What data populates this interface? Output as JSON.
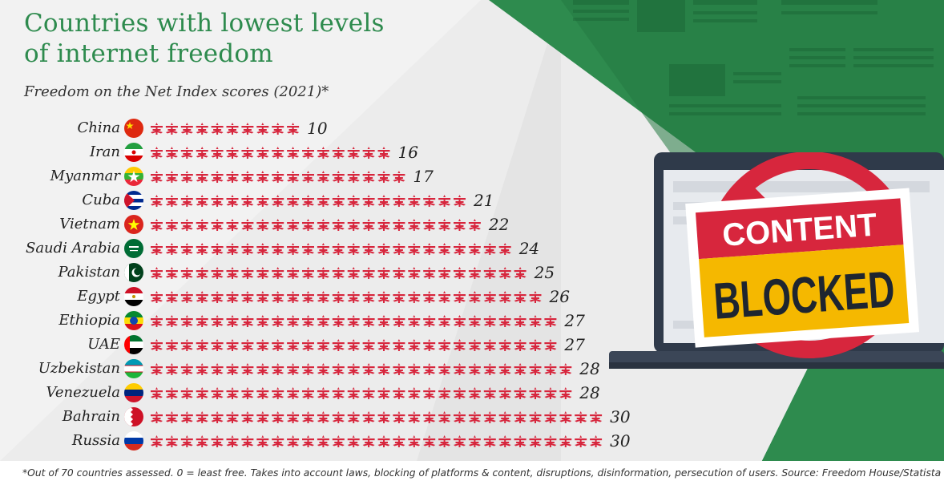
{
  "header": {
    "title_line1": "Countries with lowest levels",
    "title_line2": "of internet freedom",
    "subtitle": "Freedom on the Net Index scores (2021)*"
  },
  "chart_data": {
    "type": "bar",
    "title": "Countries with lowest levels of internet freedom",
    "subtitle": "Freedom on the Net Index scores (2021)*",
    "categories": [
      "China",
      "Iran",
      "Myanmar",
      "Cuba",
      "Vietnam",
      "Saudi Arabia",
      "Pakistan",
      "Egypt",
      "Ethiopia",
      "UAE",
      "Uzbekistan",
      "Venezuela",
      "Bahrain",
      "Russia"
    ],
    "values": [
      10,
      16,
      17,
      21,
      22,
      24,
      25,
      26,
      27,
      27,
      28,
      28,
      30,
      30
    ],
    "flags": [
      "flag-china-icon",
      "flag-iran-icon",
      "flag-myanmar-icon",
      "flag-cuba-icon",
      "flag-vietnam-icon",
      "flag-saudi-arabia-icon",
      "flag-pakistan-icon",
      "flag-egypt-icon",
      "flag-ethiopia-icon",
      "flag-uae-icon",
      "flag-uzbekistan-icon",
      "flag-venezuela-icon",
      "flag-bahrain-icon",
      "flag-russia-icon"
    ],
    "mark_icon": "broken-network-icon",
    "orientation": "horizontal",
    "xlabel": "",
    "ylabel": "",
    "grid": false,
    "legend": "none",
    "colors": {
      "marks": "#d7263d",
      "title": "#2e8b4e"
    }
  },
  "illustration": {
    "sign_line1": "CONTENT",
    "sign_line2": "BLOCKED"
  },
  "footnote": "*Out of 70 countries assessed. 0 = least free. Takes into account laws, blocking of platforms & content, disruptions, disinformation, persecution of users. Source: Freedom House/Statista"
}
